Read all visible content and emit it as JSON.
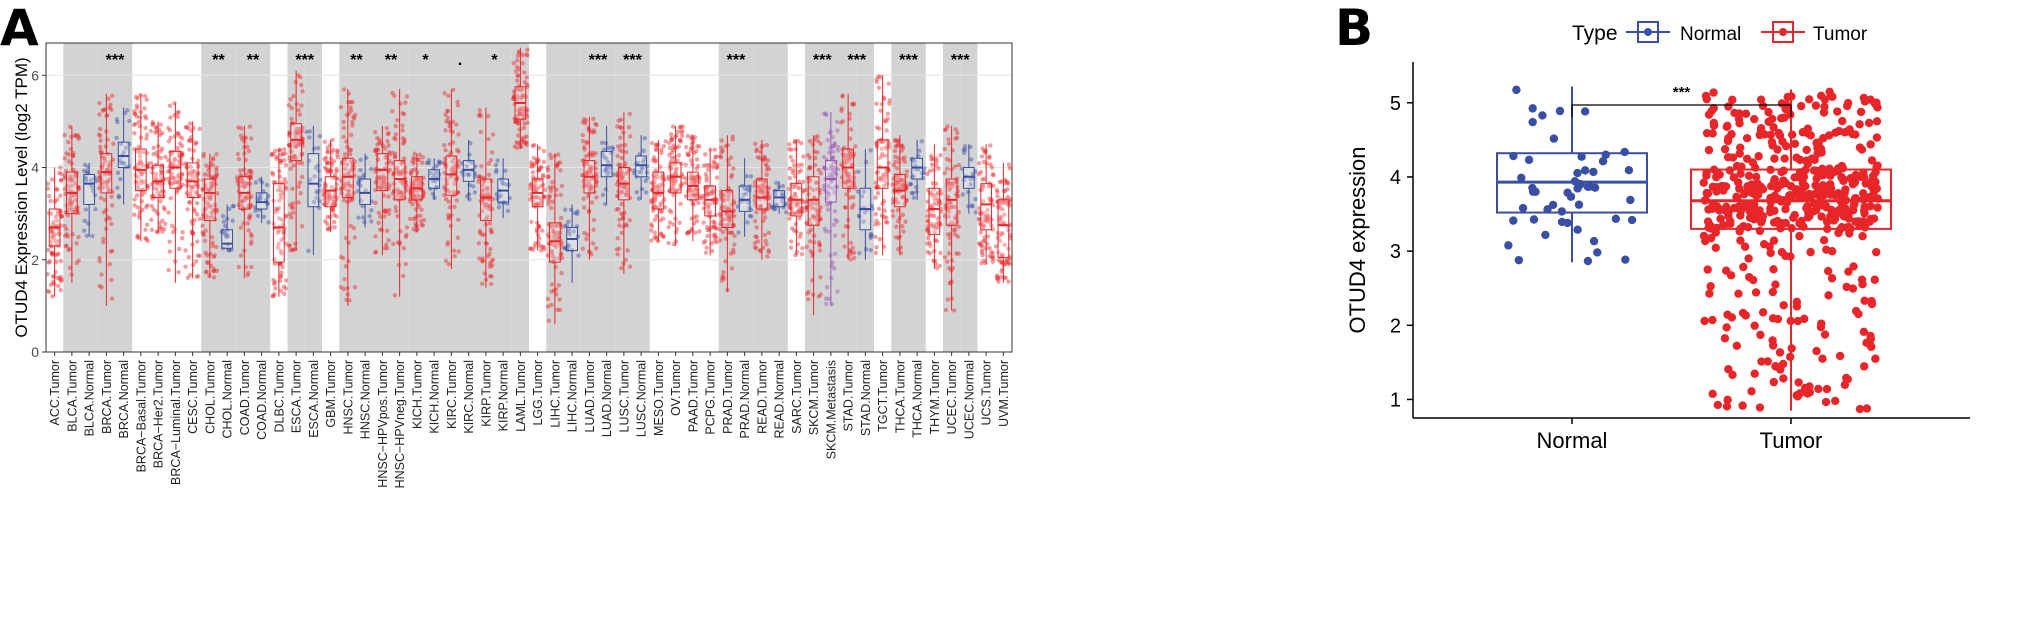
{
  "chart_data": [
    {
      "type": "box",
      "panel_label": "A",
      "title": "",
      "ylabel": "OTUD4 Expression Level (log2 TPM)",
      "xlabel": "",
      "ylim": [
        0,
        6.7
      ],
      "yticks": [
        0,
        2,
        4,
        6
      ],
      "grid": true,
      "legend": "none",
      "colors": {
        "Tumor": "#e8262a",
        "Normal": "#3a4fa3",
        "Metastasis": "#9b59b6",
        "shade": "#d3d3d3"
      },
      "boxes": [
        {
          "label": "ACC.Tumor",
          "type": "Tumor",
          "min": 1.2,
          "q1": 2.3,
          "median": 2.7,
          "q3": 3.1,
          "max": 4.0
        },
        {
          "label": "BLCA.Tumor",
          "type": "Tumor",
          "min": 1.5,
          "q1": 3.0,
          "median": 3.45,
          "q3": 3.9,
          "max": 4.9
        },
        {
          "label": "BLCA.Normal",
          "type": "Normal",
          "min": 2.5,
          "q1": 3.2,
          "median": 3.65,
          "q3": 3.85,
          "max": 4.1
        },
        {
          "label": "BRCA.Tumor",
          "type": "Tumor",
          "min": 1.0,
          "q1": 3.45,
          "median": 3.9,
          "q3": 4.3,
          "max": 5.6
        },
        {
          "label": "BRCA.Normal",
          "type": "Normal",
          "min": 3.2,
          "q1": 4.0,
          "median": 4.25,
          "q3": 4.55,
          "max": 5.3
        },
        {
          "label": "BRCA−Basal.Tumor",
          "type": "Tumor",
          "min": 2.4,
          "q1": 3.5,
          "median": 3.95,
          "q3": 4.4,
          "max": 5.6
        },
        {
          "label": "BRCA−Her2.Tumor",
          "type": "Tumor",
          "min": 2.6,
          "q1": 3.35,
          "median": 3.7,
          "q3": 4.05,
          "max": 5.0
        },
        {
          "label": "BRCA−Luminal.Tumor",
          "type": "Tumor",
          "min": 1.5,
          "q1": 3.55,
          "median": 4.0,
          "q3": 4.35,
          "max": 5.4
        },
        {
          "label": "CESC.Tumor",
          "type": "Tumor",
          "min": 1.6,
          "q1": 3.35,
          "median": 3.7,
          "q3": 4.1,
          "max": 5.0
        },
        {
          "label": "CHOL.Tumor",
          "type": "Tumor",
          "min": 1.6,
          "q1": 2.85,
          "median": 3.45,
          "q3": 3.75,
          "max": 4.3
        },
        {
          "label": "CHOL.Normal",
          "type": "Normal",
          "min": 2.2,
          "q1": 2.25,
          "median": 2.35,
          "q3": 2.65,
          "max": 3.2
        },
        {
          "label": "COAD.Tumor",
          "type": "Tumor",
          "min": 1.6,
          "q1": 3.1,
          "median": 3.45,
          "q3": 3.8,
          "max": 4.9
        },
        {
          "label": "COAD.Normal",
          "type": "Normal",
          "min": 2.8,
          "q1": 3.1,
          "median": 3.25,
          "q3": 3.45,
          "max": 3.8
        },
        {
          "label": "DLBC.Tumor",
          "type": "Tumor",
          "min": 1.2,
          "q1": 1.95,
          "median": 2.7,
          "q3": 3.65,
          "max": 4.4
        },
        {
          "label": "ESCA.Tumor",
          "type": "Tumor",
          "min": 2.2,
          "q1": 4.15,
          "median": 4.6,
          "q3": 4.95,
          "max": 6.1
        },
        {
          "label": "ESCA.Normal",
          "type": "Normal",
          "min": 2.1,
          "q1": 3.15,
          "median": 3.65,
          "q3": 4.3,
          "max": 4.9
        },
        {
          "label": "GBM.Tumor",
          "type": "Tumor",
          "min": 2.6,
          "q1": 3.15,
          "median": 3.5,
          "q3": 3.8,
          "max": 4.6
        },
        {
          "label": "HNSC.Tumor",
          "type": "Tumor",
          "min": 1.0,
          "q1": 3.35,
          "median": 3.8,
          "q3": 4.2,
          "max": 5.7
        },
        {
          "label": "HNSC.Normal",
          "type": "Normal",
          "min": 2.7,
          "q1": 3.2,
          "median": 3.45,
          "q3": 3.75,
          "max": 4.3
        },
        {
          "label": "HNSC−HPVpos.Tumor",
          "type": "Tumor",
          "min": 2.1,
          "q1": 3.5,
          "median": 3.95,
          "q3": 4.3,
          "max": 4.9
        },
        {
          "label": "HNSC−HPVneg.Tumor",
          "type": "Tumor",
          "min": 1.2,
          "q1": 3.3,
          "median": 3.75,
          "q3": 4.15,
          "max": 5.7
        },
        {
          "label": "KICH.Tumor",
          "type": "Tumor",
          "min": 2.6,
          "q1": 3.3,
          "median": 3.55,
          "q3": 3.8,
          "max": 4.3
        },
        {
          "label": "KICH.Normal",
          "type": "Normal",
          "min": 3.3,
          "q1": 3.55,
          "median": 3.75,
          "q3": 3.95,
          "max": 4.2
        },
        {
          "label": "KIRC.Tumor",
          "type": "Tumor",
          "min": 1.8,
          "q1": 3.4,
          "median": 3.85,
          "q3": 4.25,
          "max": 5.7
        },
        {
          "label": "KIRC.Normal",
          "type": "Normal",
          "min": 3.3,
          "q1": 3.7,
          "median": 3.95,
          "q3": 4.15,
          "max": 4.6
        },
        {
          "label": "KIRP.Tumor",
          "type": "Tumor",
          "min": 1.4,
          "q1": 2.85,
          "median": 3.35,
          "q3": 3.75,
          "max": 5.3
        },
        {
          "label": "KIRP.Normal",
          "type": "Normal",
          "min": 2.9,
          "q1": 3.25,
          "median": 3.5,
          "q3": 3.75,
          "max": 4.2
        },
        {
          "label": "LAML.Tumor",
          "type": "Tumor",
          "min": 4.4,
          "q1": 5.05,
          "median": 5.4,
          "q3": 5.75,
          "max": 6.6
        },
        {
          "label": "LGG.Tumor",
          "type": "Tumor",
          "min": 2.2,
          "q1": 3.15,
          "median": 3.45,
          "q3": 3.75,
          "max": 4.5
        },
        {
          "label": "LIHC.Tumor",
          "type": "Tumor",
          "min": 0.6,
          "q1": 1.95,
          "median": 2.4,
          "q3": 2.8,
          "max": 4.3
        },
        {
          "label": "LIHC.Normal",
          "type": "Normal",
          "min": 1.5,
          "q1": 2.2,
          "median": 2.45,
          "q3": 2.7,
          "max": 3.2
        },
        {
          "label": "LUAD.Tumor",
          "type": "Tumor",
          "min": 2.0,
          "q1": 3.45,
          "median": 3.8,
          "q3": 4.15,
          "max": 5.1
        },
        {
          "label": "LUAD.Normal",
          "type": "Normal",
          "min": 3.2,
          "q1": 3.8,
          "median": 4.05,
          "q3": 4.35,
          "max": 4.9
        },
        {
          "label": "LUSC.Tumor",
          "type": "Tumor",
          "min": 1.7,
          "q1": 3.3,
          "median": 3.65,
          "q3": 4.0,
          "max": 5.2
        },
        {
          "label": "LUSC.Normal",
          "type": "Normal",
          "min": 3.3,
          "q1": 3.8,
          "median": 4.05,
          "q3": 4.25,
          "max": 4.7
        },
        {
          "label": "MESO.Tumor",
          "type": "Tumor",
          "min": 2.4,
          "q1": 3.1,
          "median": 3.45,
          "q3": 3.9,
          "max": 4.6
        },
        {
          "label": "OV.Tumor",
          "type": "Tumor",
          "min": 2.3,
          "q1": 3.45,
          "median": 3.8,
          "q3": 4.1,
          "max": 4.9
        },
        {
          "label": "PAAD.Tumor",
          "type": "Tumor",
          "min": 2.4,
          "q1": 3.3,
          "median": 3.6,
          "q3": 3.9,
          "max": 4.7
        },
        {
          "label": "PCPG.Tumor",
          "type": "Tumor",
          "min": 2.1,
          "q1": 2.95,
          "median": 3.3,
          "q3": 3.6,
          "max": 4.4
        },
        {
          "label": "PRAD.Tumor",
          "type": "Tumor",
          "min": 1.3,
          "q1": 2.7,
          "median": 3.05,
          "q3": 3.5,
          "max": 4.7
        },
        {
          "label": "PRAD.Normal",
          "type": "Normal",
          "min": 2.5,
          "q1": 3.05,
          "median": 3.3,
          "q3": 3.6,
          "max": 4.2
        },
        {
          "label": "READ.Tumor",
          "type": "Tumor",
          "min": 2.0,
          "q1": 3.1,
          "median": 3.35,
          "q3": 3.75,
          "max": 4.6
        },
        {
          "label": "READ.Normal",
          "type": "Normal",
          "min": 3.0,
          "q1": 3.15,
          "median": 3.35,
          "q3": 3.5,
          "max": 3.7
        },
        {
          "label": "SARC.Tumor",
          "type": "Tumor",
          "min": 2.1,
          "q1": 2.95,
          "median": 3.3,
          "q3": 3.65,
          "max": 4.6
        },
        {
          "label": "SKCM.Tumor",
          "type": "Tumor",
          "min": 0.8,
          "q1": 2.75,
          "median": 3.3,
          "q3": 3.8,
          "max": 4.7
        },
        {
          "label": "SKCM.Metastasis",
          "type": "Metastasis",
          "min": 1.0,
          "q1": 3.25,
          "median": 3.75,
          "q3": 4.15,
          "max": 5.2
        },
        {
          "label": "STAD.Tumor",
          "type": "Tumor",
          "min": 2.0,
          "q1": 3.55,
          "median": 4.0,
          "q3": 4.4,
          "max": 5.6
        },
        {
          "label": "STAD.Normal",
          "type": "Normal",
          "min": 2.0,
          "q1": 2.65,
          "median": 3.1,
          "q3": 3.55,
          "max": 4.4
        },
        {
          "label": "TGCT.Tumor",
          "type": "Tumor",
          "min": 2.1,
          "q1": 3.55,
          "median": 4.0,
          "q3": 4.6,
          "max": 6.0
        },
        {
          "label": "THCA.Tumor",
          "type": "Tumor",
          "min": 2.1,
          "q1": 3.15,
          "median": 3.5,
          "q3": 3.85,
          "max": 4.7
        },
        {
          "label": "THCA.Normal",
          "type": "Normal",
          "min": 3.3,
          "q1": 3.75,
          "median": 4.0,
          "q3": 4.2,
          "max": 4.6
        },
        {
          "label": "THYM.Tumor",
          "type": "Tumor",
          "min": 1.8,
          "q1": 2.55,
          "median": 3.1,
          "q3": 3.55,
          "max": 4.5
        },
        {
          "label": "UCEC.Tumor",
          "type": "Tumor",
          "min": 0.9,
          "q1": 2.75,
          "median": 3.3,
          "q3": 3.75,
          "max": 4.9
        },
        {
          "label": "UCEC.Normal",
          "type": "Normal",
          "min": 3.0,
          "q1": 3.55,
          "median": 3.8,
          "q3": 4.0,
          "max": 4.5
        },
        {
          "label": "UCS.Tumor",
          "type": "Tumor",
          "min": 1.9,
          "q1": 2.65,
          "median": 3.2,
          "q3": 3.65,
          "max": 4.5
        },
        {
          "label": "UVM.Tumor",
          "type": "Tumor",
          "min": 1.5,
          "q1": 2.05,
          "median": 2.75,
          "q3": 3.3,
          "max": 4.1
        }
      ],
      "shaded_indices": [
        1,
        2,
        3,
        4,
        9,
        10,
        11,
        12,
        14,
        15,
        17,
        18,
        19,
        20,
        21,
        22,
        23,
        24,
        25,
        26,
        27,
        29,
        30,
        31,
        32,
        33,
        34,
        39,
        40,
        41,
        42,
        44,
        45,
        46,
        47,
        49,
        50,
        52,
        53
      ],
      "annotations": [
        {
          "text": "***",
          "between": [
            3,
            4
          ]
        },
        {
          "text": "**",
          "between": [
            9,
            10
          ]
        },
        {
          "text": "**",
          "between": [
            11,
            12
          ]
        },
        {
          "text": "***",
          "between": [
            14,
            15
          ]
        },
        {
          "text": "**",
          "between": [
            17,
            18
          ]
        },
        {
          "text": "**",
          "between": [
            19,
            20
          ]
        },
        {
          "text": "*",
          "between": [
            21,
            22
          ]
        },
        {
          "text": ".",
          "between": [
            23,
            24
          ]
        },
        {
          "text": "*",
          "between": [
            25,
            26
          ]
        },
        {
          "text": "***",
          "between": [
            31,
            32
          ]
        },
        {
          "text": "***",
          "between": [
            33,
            34
          ]
        },
        {
          "text": "***",
          "between": [
            39,
            40
          ]
        },
        {
          "text": "***",
          "between": [
            44,
            45
          ]
        },
        {
          "text": "***",
          "between": [
            46,
            47
          ]
        },
        {
          "text": "***",
          "between": [
            49,
            50
          ]
        },
        {
          "text": "***",
          "between": [
            52,
            53
          ]
        }
      ]
    },
    {
      "type": "box",
      "panel_label": "B",
      "title": "",
      "ylabel": "OTUD4 expression",
      "xlabel": "",
      "ylim": [
        0.75,
        5.55
      ],
      "yticks": [
        1,
        2,
        3,
        4,
        5
      ],
      "grid": false,
      "legend": "top",
      "legend_title": "Type",
      "categories": [
        "Normal",
        "Tumor"
      ],
      "series": [
        {
          "name": "Normal",
          "color": "#3a4fa3",
          "n": 50,
          "min": 2.85,
          "q1": 3.52,
          "median": 3.93,
          "q3": 4.32,
          "max": 5.22
        },
        {
          "name": "Tumor",
          "color": "#e8262a",
          "n": 520,
          "min": 0.85,
          "q1": 3.3,
          "median": 3.68,
          "q3": 4.1,
          "max": 5.18
        }
      ],
      "significance": "***"
    }
  ]
}
